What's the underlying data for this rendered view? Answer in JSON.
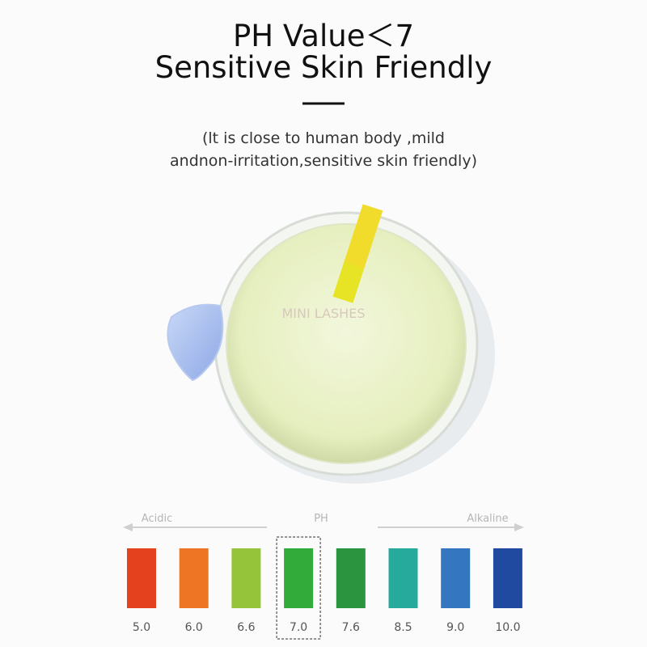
{
  "header": {
    "title": [
      "PH Value＜7",
      "Sensitive Skin Friendly"
    ],
    "subtitle": [
      "(lt is close to human body ,mild",
      "andnon-irritation,sensitive skin friendly)"
    ]
  },
  "illustration": {
    "watermark": "MINI LASHES"
  },
  "scale": {
    "left_label": "Acidic",
    "center_label": "PH",
    "right_label": "Alkaline",
    "highlighted": 3,
    "swatches": [
      {
        "label": "5.0",
        "color": "#e4421f"
      },
      {
        "label": "6.0",
        "color": "#ee7524"
      },
      {
        "label": "6.6",
        "color": "#95c43a"
      },
      {
        "label": "7.0",
        "color": "#33ab3a"
      },
      {
        "label": "7.6",
        "color": "#2b943f"
      },
      {
        "label": "8.5",
        "color": "#25aa9c"
      },
      {
        "label": "9.0",
        "color": "#3576c0"
      },
      {
        "label": "10.0",
        "color": "#1f4aa0"
      }
    ]
  }
}
